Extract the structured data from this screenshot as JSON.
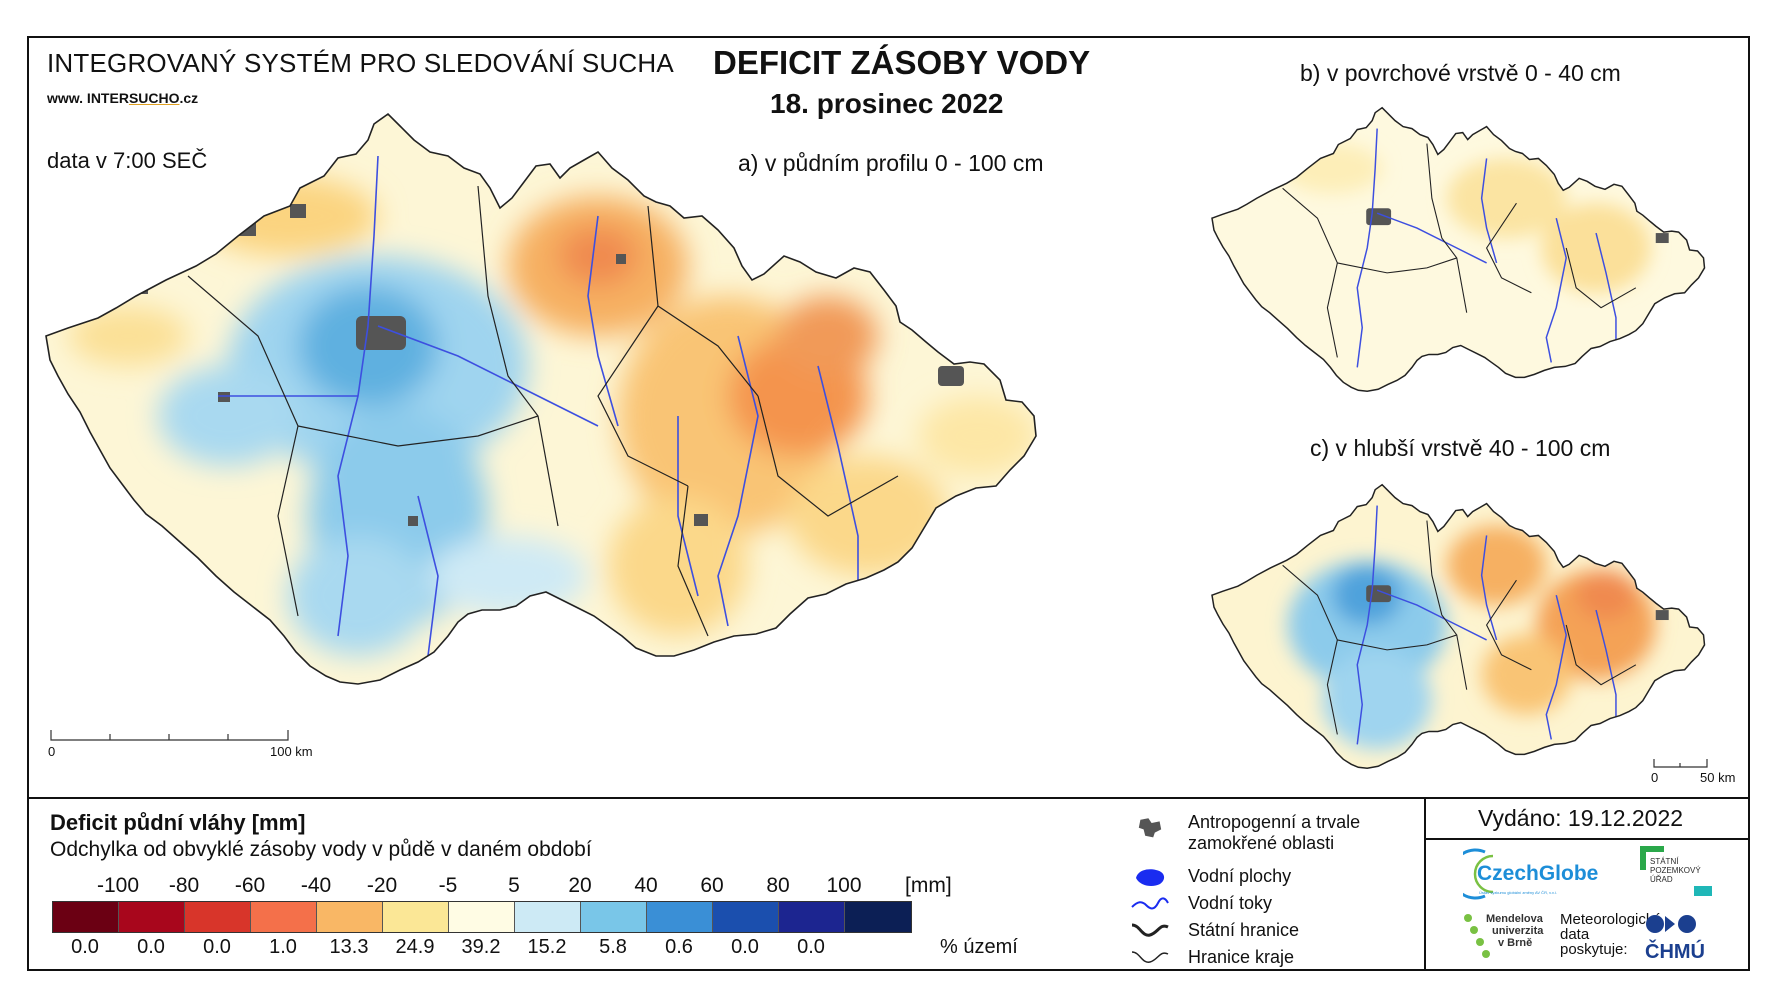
{
  "header": {
    "system_title": "INTEGROVANÝ SYSTÉM PRO SLEDOVÁNÍ SUCHA",
    "website_prefix": "www. INTER",
    "website_highlight": "SUCHO",
    "website_suffix": ".cz",
    "data_time": "data v 7:00 SEČ",
    "main_title": "DEFICIT ZÁSOBY VODY",
    "main_date": "18. prosinec 2022"
  },
  "maps": {
    "a_title": "a) v půdním profilu 0 - 100 cm",
    "b_title": "b) v povrchové vrstvě 0 - 40 cm",
    "c_title": "c) v hlubší vrstvě 40 - 100 cm",
    "scale_a_zero": "0",
    "scale_a_end": "100 km",
    "scale_c_zero": "0",
    "scale_c_end": "50 km"
  },
  "legend": {
    "title": "Deficit půdní vláhy  [mm]",
    "subtitle": "Odchylka od obvyklé zásoby vody v půdě v daném období",
    "ticks": [
      "-100",
      "-80",
      "-60",
      "-40",
      "-20",
      "-5",
      "5",
      "20",
      "40",
      "60",
      "80",
      "100"
    ],
    "unit": "[mm]",
    "colors": [
      "#6b0013",
      "#a8061c",
      "#d8352a",
      "#f4704a",
      "#f9b765",
      "#fbe796",
      "#fffce4",
      "#cdeaf5",
      "#79c6e8",
      "#3a8fd6",
      "#1b4fae",
      "#1c2590",
      "#0c1f55"
    ],
    "percentages": [
      "0.0",
      "0.0",
      "0.0",
      "1.0",
      "13.3",
      "24.9",
      "39.2",
      "15.2",
      "5.8",
      "0.6",
      "0.0",
      "0.0"
    ],
    "percent_unit": "% území"
  },
  "symbols": {
    "anthropogenic_line1": "Antropogenní a trvale",
    "anthropogenic_line2": "zamokřené oblasti",
    "water_bodies": "Vodní plochy",
    "rivers": "Vodní toky",
    "state_border": "Státní hranice",
    "region_border": "Hranice kraje"
  },
  "footer": {
    "issued": "Vydáno: 19.12.2022",
    "czechglobe": "CzechGlobe",
    "czechglobe_sub": "Ústav výzkumu globální změny AV ČR, v.v.i.",
    "spu_line1": "STÁTNÍ",
    "spu_line2": "POZEMKOVÝ",
    "spu_line3": "ÚŘAD",
    "mendel_line1": "Mendelova",
    "mendel_line2": "univerzita",
    "mendel_line3": "v Brně",
    "met_line1": "Meteorologická",
    "met_line2": "data",
    "met_line3": "poskytuje:",
    "chmu": "ČHMÚ"
  }
}
